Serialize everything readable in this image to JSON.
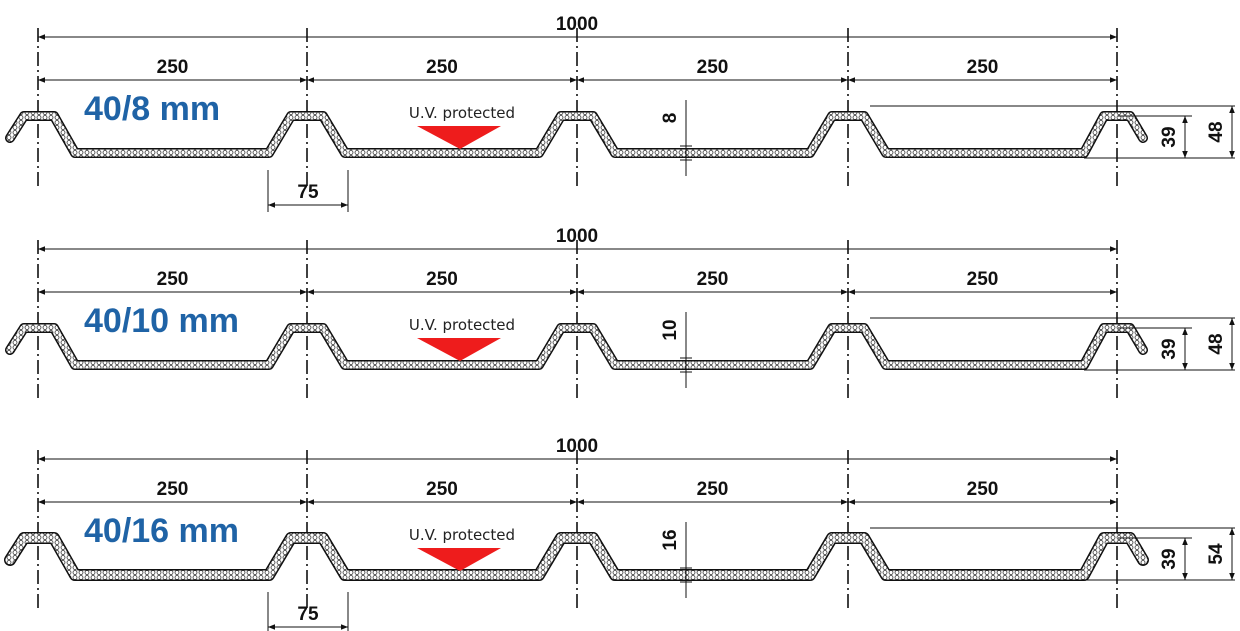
{
  "colors": {
    "title": "#1f63a6",
    "uv_marker": "#ee1c1c",
    "line": "#111111"
  },
  "diagrams": [
    {
      "title": "40/8 mm",
      "total_width": "1000",
      "spans": [
        "250",
        "250",
        "250",
        "250"
      ],
      "uv_label": "U.V. protected",
      "thickness": "8",
      "rib_height": "39",
      "overall_height": "48",
      "crest_width": "75",
      "show_crest_width": true
    },
    {
      "title": "40/10 mm",
      "total_width": "1000",
      "spans": [
        "250",
        "250",
        "250",
        "250"
      ],
      "uv_label": "U.V. protected",
      "thickness": "10",
      "rib_height": "39",
      "overall_height": "48",
      "crest_width": "",
      "show_crest_width": false
    },
    {
      "title": "40/16 mm",
      "total_width": "1000",
      "spans": [
        "250",
        "250",
        "250",
        "250"
      ],
      "uv_label": "U.V. protected",
      "thickness": "16",
      "rib_height": "39",
      "overall_height": "54",
      "crest_width": "75",
      "show_crest_width": true
    }
  ]
}
